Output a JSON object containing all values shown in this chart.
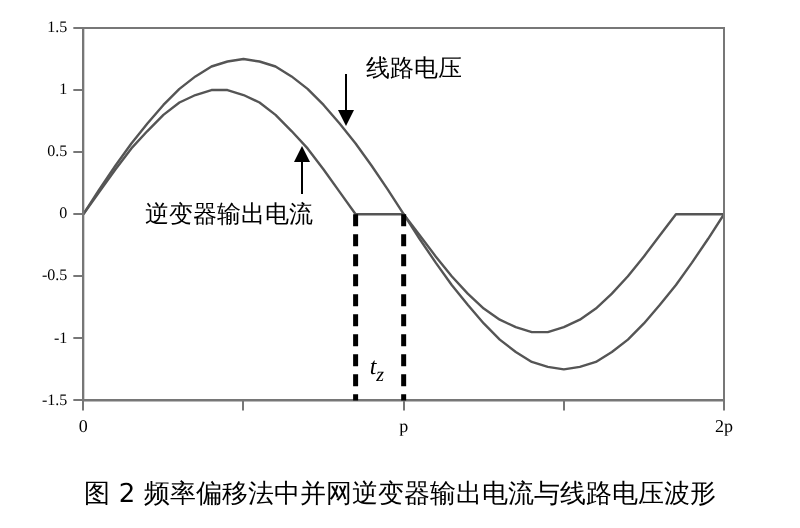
{
  "chart_data": {
    "type": "line",
    "x": [
      0,
      0.05,
      0.1,
      0.15,
      0.2,
      0.25,
      0.3,
      0.35,
      0.4,
      0.45,
      0.5,
      0.55,
      0.6,
      0.65,
      0.7,
      0.75,
      0.8,
      0.85,
      0.9,
      0.95,
      1,
      1.05,
      1.1,
      1.15,
      1.2,
      1.25,
      1.3,
      1.35,
      1.4,
      1.45,
      1.5,
      1.55,
      1.6,
      1.65,
      1.7,
      1.75,
      1.8,
      1.85,
      1.9,
      1.95,
      2
    ],
    "series": [
      {
        "color": "#555555",
        "values": [
          0,
          0.2,
          0.39,
          0.57,
          0.73,
          0.88,
          1.01,
          1.11,
          1.19,
          1.23,
          1.25,
          1.23,
          1.19,
          1.11,
          1.01,
          0.88,
          0.73,
          0.57,
          0.39,
          0.2,
          0,
          -0.2,
          -0.39,
          -0.57,
          -0.73,
          -0.88,
          -1.01,
          -1.11,
          -1.19,
          -1.23,
          -1.25,
          -1.23,
          -1.19,
          -1.11,
          -1.01,
          -0.88,
          -0.73,
          -0.57,
          -0.39,
          -0.2,
          0
        ]
      },
      {
        "color": "#555555",
        "values": [
          0,
          0.18,
          0.36,
          0.53,
          0.67,
          0.8,
          0.9,
          0.96,
          1,
          1,
          0.96,
          0.9,
          0.8,
          0.67,
          0.53,
          0.36,
          0.18,
          0,
          0,
          0,
          0,
          -0.17,
          -0.34,
          -0.5,
          -0.64,
          -0.76,
          -0.85,
          -0.91,
          -0.95,
          -0.95,
          -0.91,
          -0.85,
          -0.76,
          -0.64,
          -0.5,
          -0.34,
          -0.17,
          0,
          0,
          0,
          0
        ]
      }
    ],
    "xlim": [
      0,
      2
    ],
    "xticks": [
      0,
      {
        "value": 0.5,
        "label": null
      },
      {
        "value": 1,
        "label": "p"
      },
      {
        "value": 1.5,
        "label": null
      },
      {
        "value": 2,
        "label": "2p"
      }
    ],
    "ylim": [
      -1.5,
      1.5
    ],
    "yticks": [
      -1.5,
      -1,
      -0.5,
      0,
      0.5,
      1,
      1.5
    ],
    "grid": false,
    "legend": false,
    "marker": "none",
    "line_style": "solid",
    "ref_lines": [
      {
        "axis": "x",
        "value": 0.85,
        "color": "#000000",
        "line_style": "dashed"
      },
      {
        "axis": "x",
        "value": 1,
        "color": "#000000",
        "line_style": "dashed"
      }
    ],
    "annotations": [
      {
        "text": "线路电压",
        "x": 0.82,
        "y": 0.67
      },
      {
        "text": "逆变器输出电流",
        "x": 0.68,
        "y": 0.59
      },
      "t$_{z}$",
      "图 2 频率偏移法中并网逆变器输出电流与线路电压波形"
    ]
  }
}
